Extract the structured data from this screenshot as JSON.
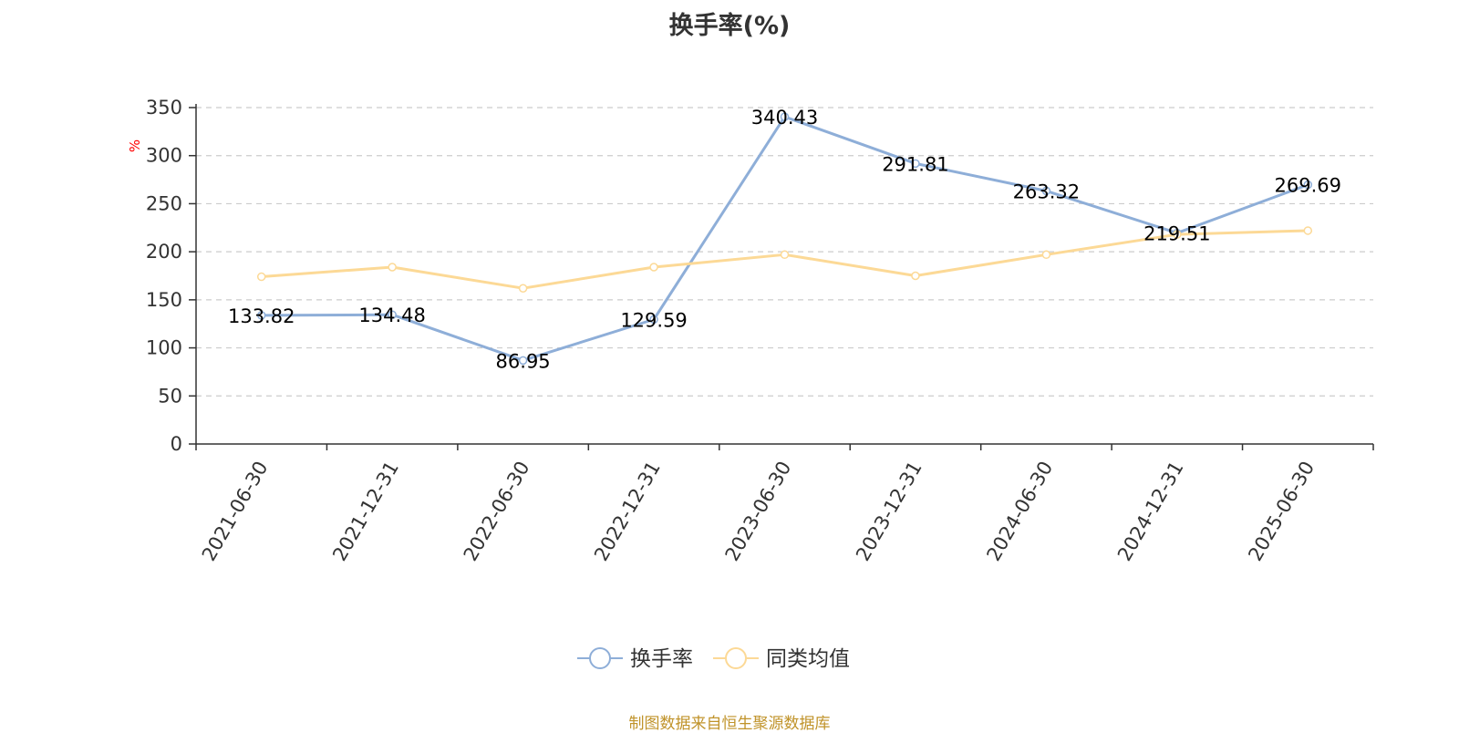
{
  "chart_data": {
    "type": "line",
    "title": "换手率(%)",
    "ylabel": "%",
    "xlabel": "",
    "categories": [
      "2021-06-30",
      "2021-12-31",
      "2022-06-30",
      "2022-12-31",
      "2023-06-30",
      "2023-12-31",
      "2024-06-30",
      "2024-12-31",
      "2025-06-30"
    ],
    "ylim": [
      0,
      350
    ],
    "yticks": [
      0,
      50,
      100,
      150,
      200,
      250,
      300,
      350
    ],
    "grid": true,
    "legend_position": "bottom-center",
    "series": [
      {
        "name": "换手率",
        "color": "#8eaed8",
        "show_labels": true,
        "values": [
          133.82,
          134.48,
          86.95,
          129.59,
          340.43,
          291.81,
          263.32,
          219.51,
          269.69
        ],
        "labels": [
          "133.82",
          "134.48",
          "86.95",
          "129.59",
          "340.43",
          "291.81",
          "263.32",
          "219.51",
          "269.69"
        ]
      },
      {
        "name": "同类均值",
        "color": "#fcd996",
        "show_labels": false,
        "values": [
          174,
          184,
          162,
          184,
          197,
          175,
          197,
          218,
          222
        ]
      }
    ]
  },
  "source_note": "制图数据来自恒生聚源数据库"
}
